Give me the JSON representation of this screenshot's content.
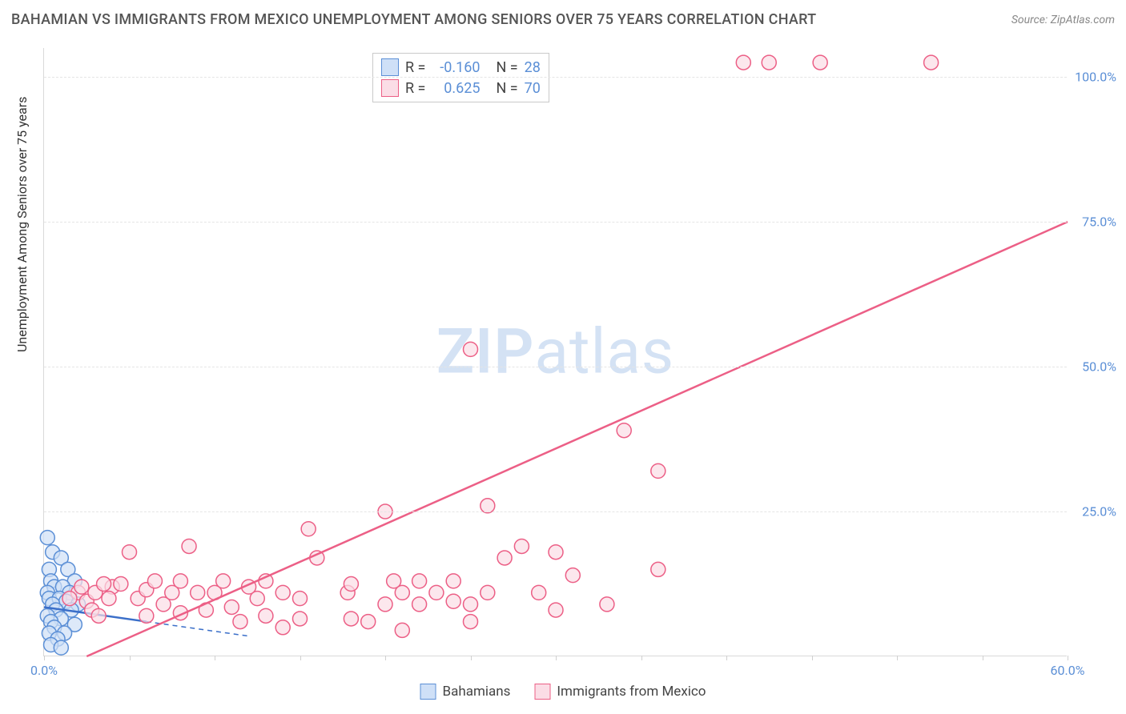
{
  "title": "BAHAMIAN VS IMMIGRANTS FROM MEXICO UNEMPLOYMENT AMONG SENIORS OVER 75 YEARS CORRELATION CHART",
  "source": "Source: ZipAtlas.com",
  "watermark_zip": "ZIP",
  "watermark_atlas": "atlas",
  "chart": {
    "type": "scatter",
    "y_axis_title": "Unemployment Among Seniors over 75 years",
    "xlim": [
      0,
      60
    ],
    "ylim": [
      0,
      105
    ],
    "x_ticks": [
      0,
      5,
      10,
      15,
      20,
      25,
      30,
      35,
      40,
      45,
      50,
      55,
      60
    ],
    "x_labels": [
      {
        "v": 0,
        "t": "0.0%"
      },
      {
        "v": 60,
        "t": "60.0%"
      }
    ],
    "y_grid": [
      25,
      50,
      75,
      100
    ],
    "y_labels": [
      {
        "v": 25,
        "t": "25.0%"
      },
      {
        "v": 50,
        "t": "50.0%"
      },
      {
        "v": 75,
        "t": "75.0%"
      },
      {
        "v": 100,
        "t": "100.0%"
      }
    ],
    "background_color": "#ffffff",
    "grid_color": "#e5e5e5",
    "marker_radius": 9,
    "marker_stroke_width": 1.5,
    "trend_line_width": 2.5,
    "series": [
      {
        "name": "Bahamians",
        "legend_label": "Bahamians",
        "color_fill": "#cfe0f7",
        "color_stroke": "#5b8fd6",
        "trend_color": "#3b6fc9",
        "R": "-0.160",
        "N": "28",
        "trend": {
          "x1": 0,
          "y1": 8.5,
          "x2": 6,
          "y2": 6.0
        },
        "trend_ext": {
          "x1": 6,
          "y1": 6.0,
          "x2": 12,
          "y2": 3.5
        },
        "points": [
          [
            0.2,
            20.5
          ],
          [
            0.5,
            18
          ],
          [
            1.0,
            17
          ],
          [
            0.3,
            15
          ],
          [
            1.4,
            15
          ],
          [
            0.4,
            13
          ],
          [
            1.8,
            13
          ],
          [
            0.6,
            12
          ],
          [
            1.1,
            12
          ],
          [
            0.2,
            11
          ],
          [
            1.5,
            11
          ],
          [
            0.3,
            10
          ],
          [
            0.9,
            10
          ],
          [
            1.3,
            9.5
          ],
          [
            0.5,
            9
          ],
          [
            2.0,
            9
          ],
          [
            0.7,
            8
          ],
          [
            1.6,
            8
          ],
          [
            0.2,
            7
          ],
          [
            1.0,
            6.5
          ],
          [
            0.4,
            6
          ],
          [
            1.8,
            5.5
          ],
          [
            0.6,
            5
          ],
          [
            0.3,
            4
          ],
          [
            1.2,
            4
          ],
          [
            0.8,
            3
          ],
          [
            0.4,
            2
          ],
          [
            1.0,
            1.5
          ]
        ]
      },
      {
        "name": "Immigrants from Mexico",
        "legend_label": "Immigrants from Mexico",
        "color_fill": "#fbdde6",
        "color_stroke": "#ec5f86",
        "trend_color": "#ec5f86",
        "R": "0.625",
        "N": "70",
        "trend": {
          "x1": 2.5,
          "y1": 0,
          "x2": 60,
          "y2": 75
        },
        "points": [
          [
            41,
            102.5
          ],
          [
            42.5,
            102.5
          ],
          [
            45.5,
            102.5
          ],
          [
            52,
            102.5
          ],
          [
            25,
            53
          ],
          [
            34,
            39
          ],
          [
            36,
            32
          ],
          [
            20,
            25
          ],
          [
            26,
            26
          ],
          [
            28,
            19
          ],
          [
            27,
            17
          ],
          [
            29,
            11
          ],
          [
            30,
            18
          ],
          [
            30,
            8
          ],
          [
            31,
            14
          ],
          [
            33,
            9
          ],
          [
            36,
            15
          ],
          [
            15.5,
            22
          ],
          [
            16,
            17
          ],
          [
            17.8,
            11
          ],
          [
            18,
            12.5
          ],
          [
            18,
            6.5
          ],
          [
            19,
            6
          ],
          [
            20,
            9
          ],
          [
            20.5,
            13
          ],
          [
            21,
            11
          ],
          [
            21,
            4.5
          ],
          [
            22,
            13
          ],
          [
            22,
            9
          ],
          [
            23,
            11
          ],
          [
            24,
            13
          ],
          [
            24,
            9.5
          ],
          [
            25,
            9
          ],
          [
            25,
            6
          ],
          [
            26,
            11
          ],
          [
            10,
            11
          ],
          [
            10.5,
            13
          ],
          [
            11,
            8.5
          ],
          [
            11.5,
            6
          ],
          [
            12,
            12
          ],
          [
            12.5,
            10
          ],
          [
            13,
            13
          ],
          [
            13,
            7
          ],
          [
            14,
            11
          ],
          [
            14,
            5
          ],
          [
            15,
            10
          ],
          [
            15,
            6.5
          ],
          [
            4,
            12
          ],
          [
            4.5,
            12.5
          ],
          [
            5,
            18
          ],
          [
            5.5,
            10
          ],
          [
            6,
            11.5
          ],
          [
            6,
            7
          ],
          [
            6.5,
            13
          ],
          [
            7,
            9
          ],
          [
            7.5,
            11
          ],
          [
            8,
            13
          ],
          [
            8,
            7.5
          ],
          [
            8.5,
            19
          ],
          [
            9,
            11
          ],
          [
            9.5,
            8
          ],
          [
            2,
            11
          ],
          [
            2.2,
            12
          ],
          [
            2.5,
            9.5
          ],
          [
            2.8,
            8
          ],
          [
            3,
            11
          ],
          [
            3.2,
            7
          ],
          [
            3.5,
            12.5
          ],
          [
            3.8,
            10
          ],
          [
            1.5,
            10
          ]
        ]
      }
    ]
  },
  "stats_legend_labels": {
    "R": "R =",
    "N": "N ="
  }
}
